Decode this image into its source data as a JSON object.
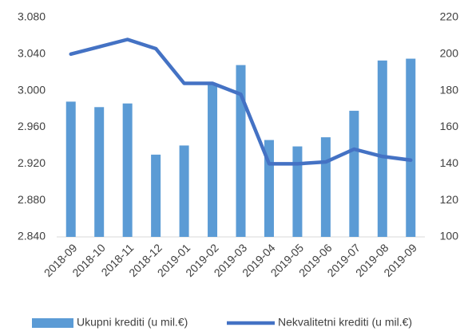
{
  "chart_data": {
    "type": "bar-line",
    "categories": [
      "2018-09",
      "2018-10",
      "2018-11",
      "2018-12",
      "2019-01",
      "2019-02",
      "2019-03",
      "2019-04",
      "2019-05",
      "2019-06",
      "2019-07",
      "2019-08",
      "2019-09"
    ],
    "series": [
      {
        "name": "Ukupni krediti (u mil.€)",
        "type": "bar",
        "color": "#5b9bd5",
        "axis": "y",
        "values": [
          2988,
          2982,
          2986,
          2930,
          2940,
          3007,
          3028,
          2946,
          2939,
          2949,
          2978,
          3033,
          3035
        ]
      },
      {
        "name": "Nekvalitetni krediti (u mil.€)",
        "type": "line",
        "color": "#4472c4",
        "axis": "y2",
        "values": [
          200,
          204,
          208,
          203,
          184,
          184,
          178,
          140,
          140,
          141,
          148,
          144,
          142
        ]
      }
    ],
    "ylim": [
      2840,
      3080
    ],
    "yticks": [
      {
        "value": 2840,
        "label": "2.840"
      },
      {
        "value": 2880,
        "label": "2.880"
      },
      {
        "value": 2920,
        "label": "2.920"
      },
      {
        "value": 2960,
        "label": "2.960"
      },
      {
        "value": 3000,
        "label": "3.000"
      },
      {
        "value": 3040,
        "label": "3.040"
      },
      {
        "value": 3080,
        "label": "3.080"
      }
    ],
    "y2lim": [
      100,
      220
    ],
    "y2ticks": [
      100,
      120,
      140,
      160,
      180,
      200,
      220
    ],
    "grid": false,
    "legend": "bottom"
  }
}
